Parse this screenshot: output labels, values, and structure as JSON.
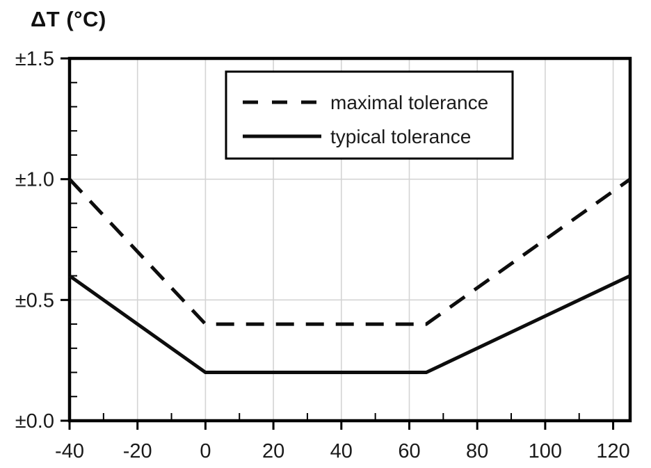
{
  "chart_data": {
    "type": "line",
    "title": "ΔT (°C)",
    "ylabel": "ΔT (°C)",
    "xlabel": "",
    "xlim": [
      -40,
      125
    ],
    "ylim": [
      0,
      1.5
    ],
    "x_ticks": [
      -40,
      -20,
      0,
      20,
      40,
      60,
      80,
      100,
      120
    ],
    "x_tick_labels": [
      "-40",
      "-20",
      "0",
      "20",
      "40",
      "60",
      "80",
      "100",
      "120"
    ],
    "x_minor_step": 10,
    "y_ticks": [
      0,
      0.5,
      1.0,
      1.5
    ],
    "y_tick_labels": [
      "±0.0",
      "±0.5",
      "±1.0",
      "±1.5"
    ],
    "y_minor_step": 0.1,
    "grid": true,
    "legend_position": "top-center",
    "series": [
      {
        "name": "maximal tolerance",
        "style": "dashed",
        "points": [
          [
            -40,
            1.0
          ],
          [
            0,
            0.4
          ],
          [
            65,
            0.4
          ],
          [
            125,
            1.0
          ]
        ]
      },
      {
        "name": "typical tolerance",
        "style": "solid",
        "points": [
          [
            -40,
            0.6
          ],
          [
            0,
            0.2
          ],
          [
            65,
            0.2
          ],
          [
            125,
            0.6
          ]
        ]
      }
    ],
    "colors": {
      "line": "#0d0d0d",
      "grid": "#d4d4d4",
      "frame": "#000000",
      "text": "#1a1a1a",
      "background": "#ffffff"
    }
  }
}
